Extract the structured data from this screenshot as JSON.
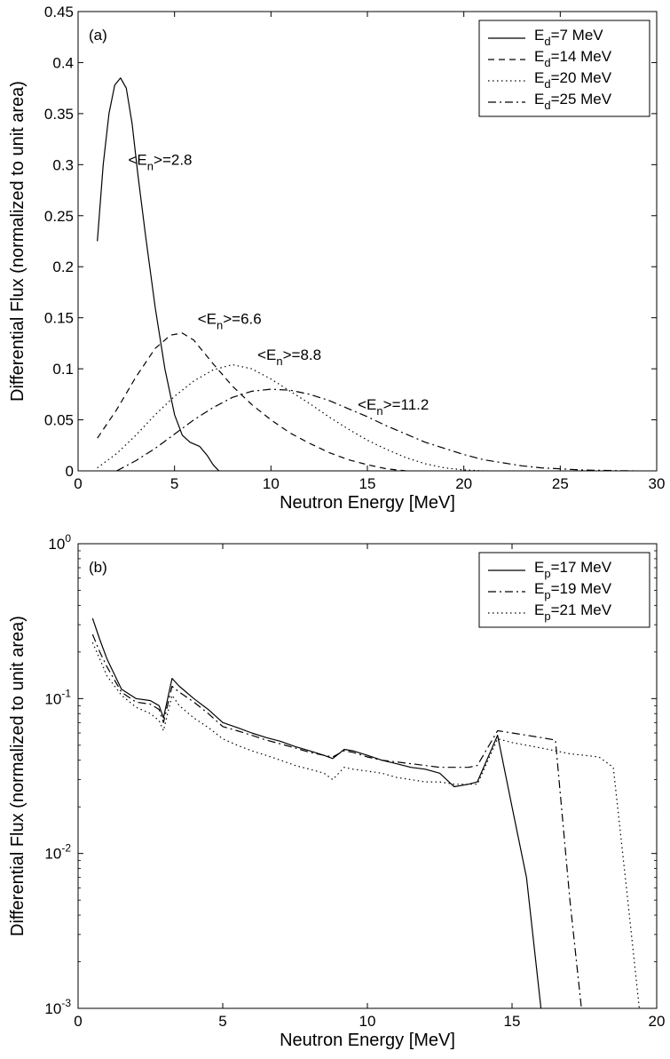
{
  "chart_data": [
    {
      "type": "line",
      "panel_label": "(a)",
      "xlabel": "Neutron Energy [MeV]",
      "ylabel": "Differential Flux (normalized to unit area)",
      "xlim": [
        0,
        30
      ],
      "ylim": [
        0,
        0.45
      ],
      "yscale": "linear",
      "grid": false,
      "legend_position": "top-right",
      "x_ticks": [
        0,
        5,
        10,
        15,
        20,
        25,
        30
      ],
      "y_ticks": [
        0,
        0.05,
        0.1,
        0.15,
        0.2,
        0.25,
        0.3,
        0.35,
        0.4,
        0.45
      ],
      "x_tick_labels": [
        "0",
        "5",
        "10",
        "15",
        "20",
        "25",
        "30"
      ],
      "y_tick_labels": [
        "0",
        "0.05",
        "0.1",
        "0.15",
        "0.2",
        "0.25",
        "0.3",
        "0.35",
        "0.4",
        "0.45"
      ],
      "series": [
        {
          "legend_main": "E",
          "legend_sub": "d",
          "legend_rest": "=7 MeV",
          "dash": "solid",
          "x": [
            1.0,
            1.3,
            1.6,
            1.9,
            2.2,
            2.5,
            2.8,
            3.1,
            3.5,
            4.0,
            4.5,
            5.0,
            5.4,
            5.8,
            6.3,
            6.7,
            7.0,
            7.3
          ],
          "y": [
            0.225,
            0.3,
            0.35,
            0.378,
            0.385,
            0.375,
            0.34,
            0.29,
            0.23,
            0.16,
            0.1,
            0.055,
            0.035,
            0.028,
            0.024,
            0.015,
            0.006,
            0.0
          ]
        },
        {
          "legend_main": "E",
          "legend_sub": "d",
          "legend_rest": "=14 MeV",
          "dash": "dashed",
          "x": [
            1.0,
            2.0,
            3.0,
            4.0,
            4.8,
            5.4,
            6.0,
            7.0,
            8.0,
            9.0,
            10.0,
            11.0,
            12.0,
            13.0,
            14.0,
            15.0,
            16.0,
            17.0
          ],
          "y": [
            0.032,
            0.06,
            0.092,
            0.12,
            0.133,
            0.135,
            0.128,
            0.105,
            0.083,
            0.065,
            0.05,
            0.037,
            0.027,
            0.018,
            0.011,
            0.006,
            0.002,
            0.0
          ]
        },
        {
          "legend_main": "E",
          "legend_sub": "d",
          "legend_rest": "=20 MeV",
          "dash": "dotted",
          "x": [
            1.0,
            2.0,
            3.0,
            4.0,
            5.0,
            6.0,
            7.0,
            8.0,
            9.0,
            10.0,
            11.0,
            12.0,
            13.0,
            14.0,
            15.0,
            16.0,
            17.0,
            18.0,
            19.0,
            20.0,
            21.0
          ],
          "y": [
            0.003,
            0.017,
            0.035,
            0.055,
            0.073,
            0.088,
            0.099,
            0.104,
            0.1,
            0.09,
            0.078,
            0.066,
            0.053,
            0.041,
            0.03,
            0.021,
            0.013,
            0.007,
            0.003,
            0.001,
            0.0
          ]
        },
        {
          "legend_main": "E",
          "legend_sub": "d",
          "legend_rest": "=25 MeV",
          "dash": "dashdot",
          "x": [
            2.0,
            3.0,
            4.0,
            5.0,
            6.0,
            7.0,
            8.0,
            9.0,
            10.0,
            11.0,
            12.0,
            13.0,
            14.0,
            15.0,
            16.0,
            17.0,
            18.0,
            19.0,
            20.0,
            21.0,
            22.0,
            23.0,
            24.0,
            25.0,
            26.0,
            27.0,
            28.0,
            29.0
          ],
          "y": [
            0.0,
            0.01,
            0.022,
            0.036,
            0.05,
            0.062,
            0.072,
            0.078,
            0.08,
            0.079,
            0.075,
            0.069,
            0.061,
            0.053,
            0.044,
            0.036,
            0.028,
            0.022,
            0.016,
            0.011,
            0.008,
            0.005,
            0.003,
            0.002,
            0.001,
            0.0005,
            0.0002,
            0.0
          ]
        }
      ],
      "annotations": [
        {
          "text_main": "<E",
          "text_sub": "n",
          "text_rest": ">=2.8",
          "x": 2.6,
          "y": 0.3
        },
        {
          "text_main": "<E",
          "text_sub": "n",
          "text_rest": ">=6.6",
          "x": 6.2,
          "y": 0.144
        },
        {
          "text_main": "<E",
          "text_sub": "n",
          "text_rest": ">=8.8",
          "x": 9.3,
          "y": 0.109
        },
        {
          "text_main": "<E",
          "text_sub": "n",
          "text_rest": ">=11.2",
          "x": 14.5,
          "y": 0.06
        }
      ]
    },
    {
      "type": "line",
      "panel_label": "(b)",
      "xlabel": "Neutron Energy [MeV]",
      "ylabel": "Differential Flux (normalized to unit area)",
      "xlim": [
        0,
        20
      ],
      "ylim": [
        0.001,
        1
      ],
      "yscale": "log",
      "grid": false,
      "legend_position": "top-right",
      "x_ticks": [
        0,
        5,
        10,
        15,
        20
      ],
      "x_tick_labels": [
        "0",
        "5",
        "10",
        "15",
        "20"
      ],
      "y_ticks": [
        0.001,
        0.01,
        0.1,
        1
      ],
      "y_tick_labels_base": [
        "10",
        "10",
        "10",
        "10"
      ],
      "y_tick_labels_exp": [
        "-3",
        "-2",
        "-1",
        "0"
      ],
      "series": [
        {
          "legend_main": "E",
          "legend_sub": "p",
          "legend_rest": "=17 MeV",
          "dash": "solid",
          "x": [
            0.5,
            0.75,
            1.0,
            1.5,
            2.0,
            2.5,
            2.8,
            2.95,
            3.25,
            3.5,
            4.0,
            4.5,
            5.0,
            5.5,
            6.0,
            6.5,
            7.0,
            7.5,
            8.0,
            8.5,
            8.8,
            9.2,
            9.5,
            10.0,
            10.5,
            11.0,
            11.5,
            12.0,
            12.5,
            13.0,
            13.5,
            13.8,
            14.5,
            15.0,
            15.5,
            16.0
          ],
          "y": [
            0.33,
            0.24,
            0.18,
            0.115,
            0.1,
            0.097,
            0.09,
            0.075,
            0.135,
            0.12,
            0.1,
            0.085,
            0.07,
            0.065,
            0.06,
            0.056,
            0.053,
            0.049,
            0.046,
            0.043,
            0.041,
            0.047,
            0.046,
            0.043,
            0.04,
            0.038,
            0.036,
            0.035,
            0.033,
            0.027,
            0.028,
            0.029,
            0.058,
            0.02,
            0.007,
            0.001
          ]
        },
        {
          "legend_main": "E",
          "legend_sub": "p",
          "legend_rest": "=19 MeV",
          "dash": "dashdot",
          "x": [
            0.5,
            0.75,
            1.0,
            1.5,
            2.0,
            2.5,
            2.8,
            2.95,
            3.25,
            3.5,
            4.0,
            4.5,
            5.0,
            5.5,
            6.0,
            6.5,
            7.0,
            7.5,
            8.0,
            8.5,
            8.8,
            9.2,
            9.5,
            10.0,
            10.5,
            11.0,
            11.5,
            12.0,
            12.5,
            13.0,
            13.5,
            13.8,
            14.5,
            15.0,
            15.5,
            16.0,
            16.5,
            17.0,
            17.4
          ],
          "y": [
            0.26,
            0.2,
            0.16,
            0.11,
            0.095,
            0.092,
            0.085,
            0.07,
            0.12,
            0.11,
            0.095,
            0.08,
            0.066,
            0.062,
            0.058,
            0.054,
            0.051,
            0.048,
            0.045,
            0.043,
            0.042,
            0.046,
            0.045,
            0.042,
            0.04,
            0.039,
            0.038,
            0.037,
            0.036,
            0.036,
            0.036,
            0.037,
            0.062,
            0.06,
            0.058,
            0.056,
            0.054,
            0.005,
            0.001
          ]
        },
        {
          "legend_main": "E",
          "legend_sub": "p",
          "legend_rest": "=21 MeV",
          "dash": "dotted",
          "x": [
            0.5,
            0.75,
            1.0,
            1.5,
            2.0,
            2.5,
            2.8,
            2.95,
            3.25,
            3.5,
            4.0,
            4.5,
            5.0,
            5.5,
            6.0,
            6.5,
            7.0,
            7.5,
            8.0,
            8.5,
            8.8,
            9.2,
            9.5,
            10.0,
            10.5,
            11.0,
            11.5,
            12.0,
            12.5,
            13.0,
            13.5,
            13.8,
            14.5,
            15.0,
            15.5,
            16.0,
            16.5,
            17.0,
            17.5,
            18.0,
            18.5,
            19.0,
            19.4
          ],
          "y": [
            0.23,
            0.18,
            0.14,
            0.105,
            0.088,
            0.08,
            0.072,
            0.062,
            0.105,
            0.09,
            0.075,
            0.065,
            0.055,
            0.05,
            0.046,
            0.043,
            0.04,
            0.037,
            0.035,
            0.033,
            0.03,
            0.036,
            0.035,
            0.034,
            0.033,
            0.031,
            0.03,
            0.029,
            0.029,
            0.028,
            0.028,
            0.028,
            0.055,
            0.052,
            0.05,
            0.048,
            0.046,
            0.044,
            0.043,
            0.042,
            0.036,
            0.005,
            0.001
          ]
        }
      ]
    }
  ]
}
